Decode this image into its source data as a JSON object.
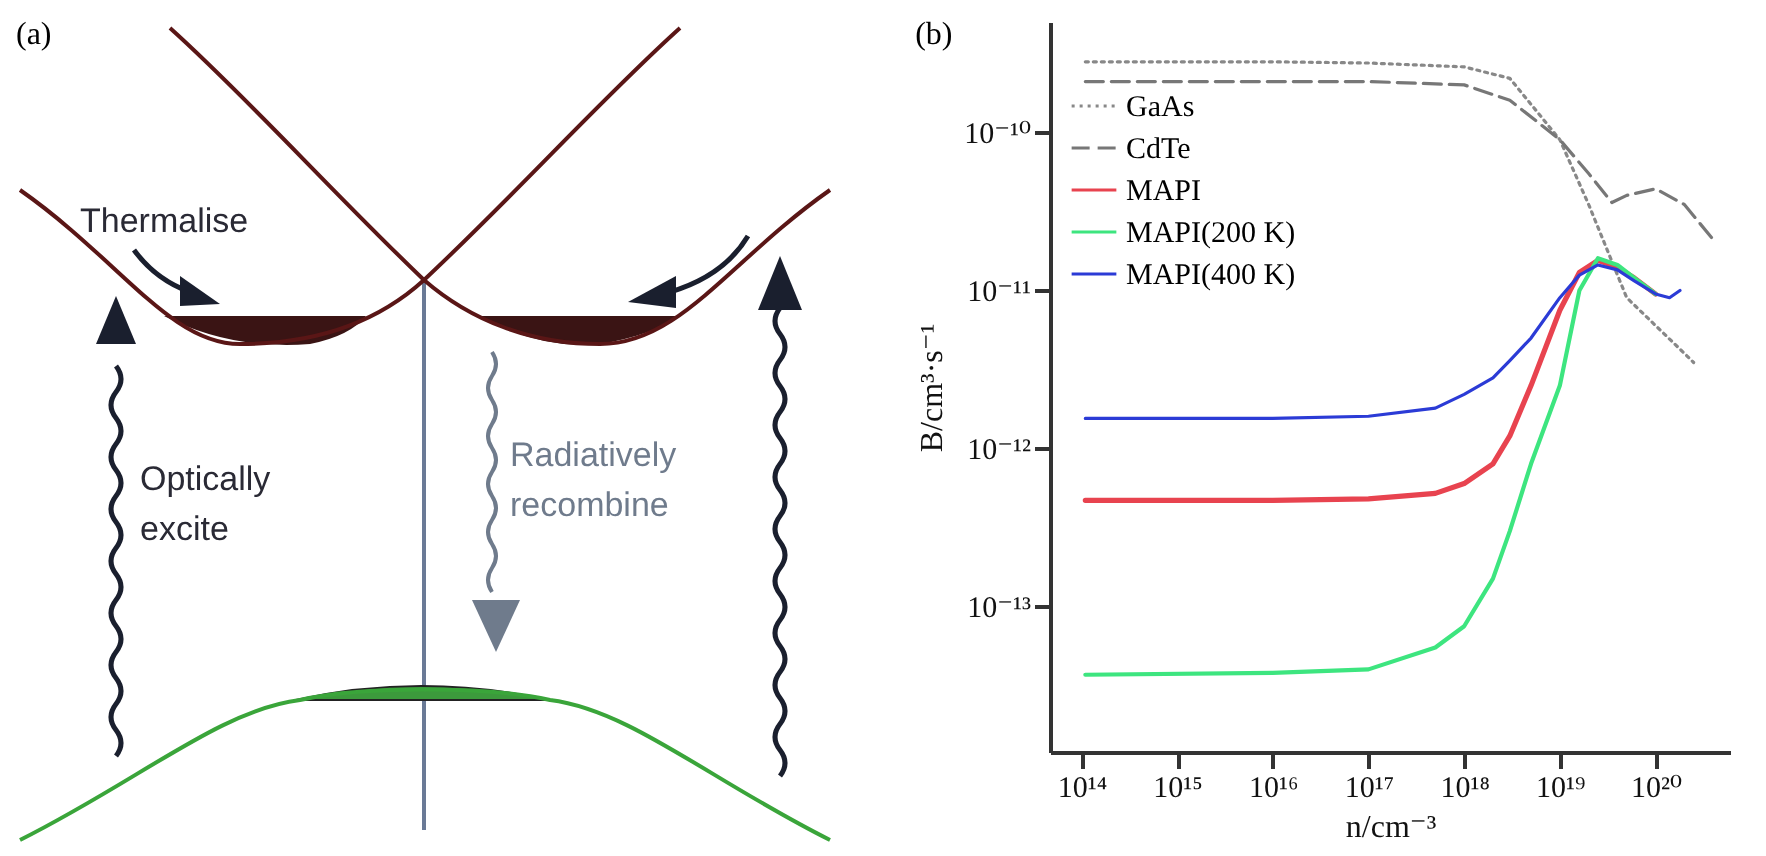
{
  "chart_data": [
    {
      "type": "other",
      "title": "(a)",
      "annotations": [
        "Thermalise",
        "Optically excite",
        "Radiatively recombine"
      ]
    },
    {
      "type": "line",
      "title": "(b)",
      "xlabel": "n/cm⁻³",
      "ylabel": "B/cm³·s⁻¹",
      "log": "xy",
      "grid": false,
      "legend": "top left",
      "xlim": [
        47000000000000.0,
        6e+20
      ],
      "ylim": [
        1.2e-14,
        5e-10
      ],
      "xticks": [
        {
          "value": 100000000000000.0,
          "label": "10¹⁴"
        },
        {
          "value": 1000000000000000.0,
          "label": "10¹⁵"
        },
        {
          "value": 1e+16,
          "label": "10¹⁶"
        },
        {
          "value": 1e+17,
          "label": "10¹⁷"
        },
        {
          "value": 1e+18,
          "label": "10¹⁸"
        },
        {
          "value": 1e+19,
          "label": "10¹⁹"
        },
        {
          "value": 1e+20,
          "label": "10²⁰"
        }
      ],
      "yticks": [
        {
          "value": 1e-13,
          "label": "10⁻¹³"
        },
        {
          "value": 1e-12,
          "label": "10⁻¹²"
        },
        {
          "value": 1e-11,
          "label": "10⁻¹¹"
        },
        {
          "value": 1e-10,
          "label": "10⁻¹⁰"
        }
      ],
      "series": [
        {
          "name": "GaAs",
          "color": "#888888",
          "line_style": "dotted",
          "x": [
            110000000000000.0,
            1e+16,
            1e+17,
            1e+18,
            3e+18,
            1e+19,
            2e+19,
            5e+19,
            1e+20,
            2e+20,
            2.5e+20
          ],
          "values": [
            2.8e-10,
            2.8e-10,
            2.75e-10,
            2.6e-10,
            2.2e-10,
            9e-11,
            3.5e-11,
            9e-12,
            6e-12,
            4e-12,
            3.5e-12
          ]
        },
        {
          "name": "CdTe",
          "color": "#777777",
          "line_style": "dashed",
          "x": [
            110000000000000.0,
            1e+17,
            1e+18,
            3e+18,
            1e+19,
            2e+19,
            3.5e+19,
            5e+19,
            1e+20,
            2e+20,
            4e+20
          ],
          "values": [
            2.1e-10,
            2.1e-10,
            2e-10,
            1.6e-10,
            9e-11,
            5.5e-11,
            3.6e-11,
            4e-11,
            4.4e-11,
            3.5e-11,
            2.1e-11
          ]
        },
        {
          "name": "MAPI",
          "color": "#e8434f",
          "line_style": "solid",
          "x": [
            110000000000000.0,
            1e+16,
            1e+17,
            5e+17,
            1e+18,
            2e+18,
            3e+18,
            5e+18,
            1e+19,
            1.6e+19,
            2.5e+19,
            4e+19,
            6e+19,
            1e+20
          ],
          "values": [
            4.7e-13,
            4.7e-13,
            4.8e-13,
            5.2e-13,
            6e-13,
            8e-13,
            1.2e-12,
            2.5e-12,
            7.5e-12,
            1.3e-11,
            1.55e-11,
            1.4e-11,
            1.2e-11,
            9.5e-12
          ]
        },
        {
          "name": "MAPI(200 K)",
          "color": "#3de57f",
          "line_style": "solid",
          "x": [
            110000000000000.0,
            1e+16,
            1e+17,
            5e+17,
            1e+18,
            2e+18,
            3e+18,
            5e+18,
            1e+19,
            1.6e+19,
            2.5e+19,
            4e+19,
            6e+19,
            1e+20
          ],
          "values": [
            3.7e-14,
            3.8e-14,
            4e-14,
            5.5e-14,
            7.5e-14,
            1.5e-13,
            3e-13,
            8e-13,
            2.5e-12,
            1e-11,
            1.6e-11,
            1.45e-11,
            1.2e-11,
            9.5e-12
          ]
        },
        {
          "name": "MAPI(400 K)",
          "color": "#2b3bd6",
          "line_style": "solid",
          "x": [
            110000000000000.0,
            1e+16,
            1e+17,
            5e+17,
            1e+18,
            2e+18,
            3e+18,
            5e+18,
            1e+19,
            1.6e+19,
            2.5e+19,
            4e+19,
            6e+19,
            1e+20,
            1.4e+20,
            1.8e+20
          ],
          "values": [
            1.55e-12,
            1.55e-12,
            1.6e-12,
            1.8e-12,
            2.2e-12,
            2.8e-12,
            3.6e-12,
            5e-12,
            9e-12,
            1.25e-11,
            1.45e-11,
            1.35e-11,
            1.15e-11,
            9.5e-12,
            9e-12,
            1e-11
          ]
        }
      ]
    }
  ]
}
